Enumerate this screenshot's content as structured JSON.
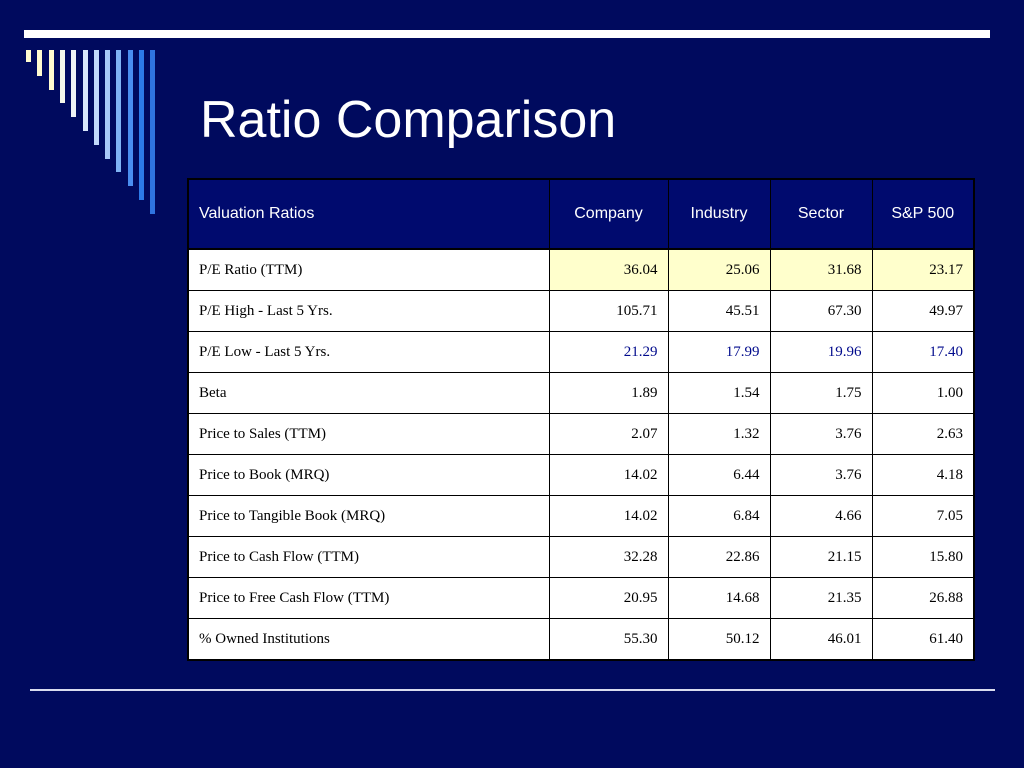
{
  "slide": {
    "title": "Ratio Comparison",
    "stripe_colors": [
      "#fffbd0",
      "#fffbd0",
      "#fffbd0",
      "#f4f7ea",
      "#eef2f6",
      "#d8e6fb",
      "#c2d9fb",
      "#a8c8f7",
      "#7fb3f5",
      "#4a8ef0",
      "#2c7ae8",
      "#2f74e0"
    ]
  },
  "table": {
    "headers": [
      "Valuation Ratios",
      "Company",
      "Industry",
      "Sector",
      "S&P 500"
    ],
    "header_bg": "#000a6e",
    "highlight_bg": "#ffffcc",
    "blue_text_color": "#000a8c",
    "rows": [
      {
        "label": "P/E Ratio (TTM)",
        "company": "36.04",
        "industry": "25.06",
        "sector": "31.68",
        "sp500": "23.17",
        "style": "highlight"
      },
      {
        "label": "P/E High - Last 5 Yrs.",
        "company": "105.71",
        "industry": "45.51",
        "sector": "67.30",
        "sp500": "49.97",
        "style": ""
      },
      {
        "label": "P/E Low - Last 5 Yrs.",
        "company": "21.29",
        "industry": "17.99",
        "sector": "19.96",
        "sp500": "17.40",
        "style": "blue-text"
      },
      {
        "label": "Beta",
        "company": "1.89",
        "industry": "1.54",
        "sector": "1.75",
        "sp500": "1.00",
        "style": ""
      },
      {
        "label": "Price to Sales (TTM)",
        "company": "2.07",
        "industry": "1.32",
        "sector": "3.76",
        "sp500": "2.63",
        "style": ""
      },
      {
        "label": "Price to Book (MRQ)",
        "company": "14.02",
        "industry": "6.44",
        "sector": "3.76",
        "sp500": "4.18",
        "style": ""
      },
      {
        "label": "Price to Tangible Book (MRQ)",
        "company": "14.02",
        "industry": "6.84",
        "sector": "4.66",
        "sp500": "7.05",
        "style": ""
      },
      {
        "label": "Price to Cash Flow (TTM)",
        "company": "32.28",
        "industry": "22.86",
        "sector": "21.15",
        "sp500": "15.80",
        "style": ""
      },
      {
        "label": "Price to Free Cash Flow (TTM)",
        "company": "20.95",
        "industry": "14.68",
        "sector": "21.35",
        "sp500": "26.88",
        "style": ""
      },
      {
        "label": "% Owned Institutions",
        "company": "55.30",
        "industry": "50.12",
        "sector": "46.01",
        "sp500": "61.40",
        "style": ""
      }
    ]
  }
}
